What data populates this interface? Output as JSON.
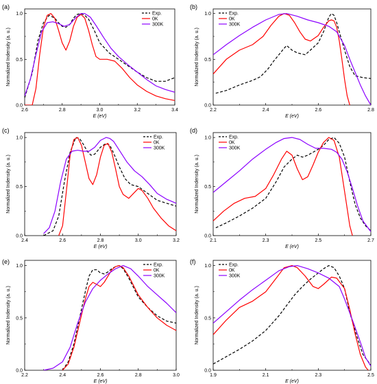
{
  "figure": {
    "series_styles": [
      {
        "key": "exp",
        "color": "#000000",
        "dash": true
      },
      {
        "key": "k0",
        "color": "#ff0000",
        "dash": false
      },
      {
        "key": "k300",
        "color": "#8b00ff",
        "dash": false
      }
    ]
  },
  "chart_data": [
    {
      "panel_label": "(a)",
      "type": "line",
      "xlabel": "E (eV)",
      "ylabel": "Normalized Indensity (a. u.)",
      "xlim": [
        2.6,
        3.4
      ],
      "ylim": [
        0.0,
        1.05
      ],
      "xticks": [
        "2.6",
        "2.8",
        "3.0",
        "3.2",
        "3.4"
      ],
      "yticks": [
        "0.0",
        "0.5",
        "1.0"
      ],
      "legend": [
        "Exp.",
        "0K",
        "300K"
      ],
      "legend_position": "top-right",
      "series": [
        {
          "name": "Exp.",
          "x": [
            2.6,
            2.64,
            2.67,
            2.7,
            2.73,
            2.76,
            2.78,
            2.8,
            2.82,
            2.84,
            2.86,
            2.88,
            2.9,
            2.92,
            2.94,
            2.97,
            3.0,
            3.05,
            3.1,
            3.15,
            3.2,
            3.25,
            3.3,
            3.35,
            3.4
          ],
          "y": [
            0.08,
            0.35,
            0.7,
            0.9,
            0.98,
            0.95,
            0.9,
            0.86,
            0.85,
            0.88,
            0.95,
            0.99,
            1.0,
            0.98,
            0.94,
            0.82,
            0.68,
            0.57,
            0.5,
            0.43,
            0.36,
            0.3,
            0.26,
            0.26,
            0.3
          ]
        },
        {
          "name": "0K",
          "x": [
            2.6,
            2.64,
            2.66,
            2.68,
            2.7,
            2.72,
            2.74,
            2.76,
            2.78,
            2.8,
            2.82,
            2.84,
            2.86,
            2.88,
            2.9,
            2.92,
            2.94,
            2.96,
            2.98,
            3.0,
            3.04,
            3.08,
            3.12,
            3.16,
            3.2,
            3.25,
            3.3,
            3.35,
            3.4
          ],
          "y": [
            0.0,
            0.0,
            0.18,
            0.55,
            0.85,
            0.98,
            1.0,
            0.95,
            0.82,
            0.68,
            0.6,
            0.7,
            0.86,
            0.96,
            0.99,
            0.95,
            0.82,
            0.66,
            0.53,
            0.5,
            0.5,
            0.48,
            0.4,
            0.3,
            0.22,
            0.15,
            0.1,
            0.07,
            0.05
          ]
        },
        {
          "name": "300K",
          "x": [
            2.6,
            2.63,
            2.66,
            2.69,
            2.72,
            2.75,
            2.78,
            2.81,
            2.84,
            2.87,
            2.9,
            2.92,
            2.95,
            2.98,
            3.02,
            3.06,
            3.1,
            3.15,
            3.2,
            3.25,
            3.3,
            3.35,
            3.4
          ],
          "y": [
            0.1,
            0.28,
            0.55,
            0.8,
            0.9,
            0.91,
            0.89,
            0.86,
            0.88,
            0.95,
            1.0,
            1.0,
            0.96,
            0.87,
            0.74,
            0.62,
            0.53,
            0.44,
            0.36,
            0.28,
            0.21,
            0.17,
            0.14
          ]
        }
      ]
    },
    {
      "panel_label": "(b)",
      "type": "line",
      "xlabel": "E (eV)",
      "ylabel": "Normalized Indensity (a. u.)",
      "xlim": [
        2.2,
        2.8
      ],
      "ylim": [
        0.0,
        1.05
      ],
      "xticks": [
        "2.2",
        "2.4",
        "2.6",
        "2.8"
      ],
      "yticks": [
        "0.0",
        "0.5",
        "1.0"
      ],
      "legend": [
        "Exp.",
        "0K",
        "300K"
      ],
      "legend_position": "top-left",
      "series": [
        {
          "name": "Exp.",
          "x": [
            2.21,
            2.25,
            2.3,
            2.35,
            2.38,
            2.41,
            2.43,
            2.45,
            2.47,
            2.48,
            2.5,
            2.52,
            2.55,
            2.57,
            2.6,
            2.62,
            2.64,
            2.65,
            2.66,
            2.67,
            2.7,
            2.72,
            2.74,
            2.77,
            2.8
          ],
          "y": [
            0.13,
            0.16,
            0.22,
            0.27,
            0.31,
            0.4,
            0.48,
            0.55,
            0.62,
            0.65,
            0.6,
            0.57,
            0.55,
            0.6,
            0.68,
            0.8,
            0.96,
            1.0,
            0.98,
            0.9,
            0.6,
            0.42,
            0.32,
            0.3,
            0.29
          ]
        },
        {
          "name": "0K",
          "x": [
            2.2,
            2.25,
            2.3,
            2.35,
            2.39,
            2.42,
            2.45,
            2.47,
            2.49,
            2.51,
            2.53,
            2.55,
            2.57,
            2.6,
            2.62,
            2.64,
            2.65,
            2.66,
            2.67,
            2.68,
            2.69,
            2.7,
            2.71,
            2.72
          ],
          "y": [
            0.34,
            0.5,
            0.6,
            0.66,
            0.75,
            0.87,
            0.97,
            1.0,
            0.98,
            0.9,
            0.8,
            0.72,
            0.7,
            0.76,
            0.85,
            0.92,
            0.93,
            0.92,
            0.85,
            0.7,
            0.5,
            0.28,
            0.1,
            0.0
          ]
        },
        {
          "name": "300K",
          "x": [
            2.2,
            2.25,
            2.3,
            2.35,
            2.4,
            2.45,
            2.48,
            2.52,
            2.56,
            2.6,
            2.64,
            2.67,
            2.7,
            2.72,
            2.74,
            2.76,
            2.78,
            2.8
          ],
          "y": [
            0.55,
            0.66,
            0.76,
            0.85,
            0.93,
            0.99,
            1.0,
            0.97,
            0.93,
            0.9,
            0.86,
            0.8,
            0.65,
            0.5,
            0.36,
            0.22,
            0.1,
            0.0
          ]
        }
      ]
    },
    {
      "panel_label": "(c)",
      "type": "line",
      "xlabel": "E (eV)",
      "ylabel": "Normalized Indensity (a. u.)",
      "xlim": [
        2.4,
        3.2
      ],
      "ylim": [
        0.0,
        1.05
      ],
      "xticks": [
        "2.4",
        "2.6",
        "2.8",
        "3.0",
        "3.2"
      ],
      "yticks": [
        "0.0",
        "0.5",
        "1.0"
      ],
      "legend": [
        "Exp.",
        "0K",
        "300K"
      ],
      "legend_position": "top-right",
      "series": [
        {
          "name": "Exp.",
          "x": [
            2.5,
            2.55,
            2.58,
            2.61,
            2.64,
            2.67,
            2.69,
            2.71,
            2.73,
            2.75,
            2.77,
            2.8,
            2.83,
            2.85,
            2.87,
            2.9,
            2.93,
            2.96,
            3.0,
            3.05,
            3.1,
            3.15,
            3.2
          ],
          "y": [
            0.0,
            0.05,
            0.2,
            0.55,
            0.85,
            1.0,
            0.99,
            0.93,
            0.86,
            0.82,
            0.83,
            0.9,
            0.94,
            0.92,
            0.84,
            0.7,
            0.58,
            0.52,
            0.5,
            0.43,
            0.36,
            0.33,
            0.3
          ]
        },
        {
          "name": "0K",
          "x": [
            2.58,
            2.6,
            2.62,
            2.64,
            2.66,
            2.68,
            2.7,
            2.72,
            2.74,
            2.76,
            2.78,
            2.8,
            2.82,
            2.84,
            2.86,
            2.88,
            2.9,
            2.92,
            2.95,
            2.98,
            3.0,
            3.02,
            3.05,
            3.08,
            3.12,
            3.16,
            3.2
          ],
          "y": [
            0.0,
            0.1,
            0.45,
            0.82,
            0.98,
            1.0,
            0.92,
            0.75,
            0.58,
            0.52,
            0.62,
            0.8,
            0.92,
            0.94,
            0.85,
            0.68,
            0.5,
            0.42,
            0.38,
            0.44,
            0.48,
            0.46,
            0.38,
            0.28,
            0.18,
            0.1,
            0.05
          ]
        },
        {
          "name": "300K",
          "x": [
            2.5,
            2.53,
            2.56,
            2.59,
            2.62,
            2.65,
            2.68,
            2.71,
            2.74,
            2.77,
            2.8,
            2.83,
            2.85,
            2.87,
            2.9,
            2.94,
            2.98,
            3.02,
            3.06,
            3.1,
            3.15,
            3.2
          ],
          "y": [
            0.02,
            0.08,
            0.25,
            0.55,
            0.78,
            0.86,
            0.87,
            0.86,
            0.86,
            0.9,
            0.97,
            1.0,
            0.99,
            0.96,
            0.87,
            0.75,
            0.66,
            0.6,
            0.52,
            0.43,
            0.37,
            0.33
          ]
        }
      ]
    },
    {
      "panel_label": "(d)",
      "type": "line",
      "xlabel": "E (eV)",
      "ylabel": "Normalized Indensity (a. u.)",
      "xlim": [
        2.1,
        2.7
      ],
      "ylim": [
        0.0,
        1.05
      ],
      "xticks": [
        "2.1",
        "2.3",
        "2.5",
        "2.7"
      ],
      "yticks": [
        "0.0",
        "0.5",
        "1.0"
      ],
      "legend": [
        "Exp.",
        "0K",
        "300K"
      ],
      "legend_position": "top-left",
      "series": [
        {
          "name": "Exp.",
          "x": [
            2.11,
            2.15,
            2.2,
            2.25,
            2.3,
            2.34,
            2.37,
            2.4,
            2.42,
            2.44,
            2.46,
            2.48,
            2.5,
            2.52,
            2.54,
            2.56,
            2.58,
            2.6,
            2.62,
            2.64,
            2.66,
            2.68,
            2.7
          ],
          "y": [
            0.08,
            0.13,
            0.2,
            0.28,
            0.38,
            0.55,
            0.7,
            0.78,
            0.82,
            0.8,
            0.82,
            0.85,
            0.88,
            0.92,
            0.98,
            1.0,
            0.94,
            0.8,
            0.55,
            0.32,
            0.18,
            0.1,
            0.05
          ]
        },
        {
          "name": "0K",
          "x": [
            2.1,
            2.14,
            2.18,
            2.22,
            2.26,
            2.3,
            2.33,
            2.36,
            2.38,
            2.4,
            2.42,
            2.44,
            2.46,
            2.48,
            2.5,
            2.52,
            2.54,
            2.56,
            2.58,
            2.6,
            2.62,
            2.63
          ],
          "y": [
            0.15,
            0.25,
            0.33,
            0.38,
            0.4,
            0.48,
            0.62,
            0.78,
            0.86,
            0.82,
            0.68,
            0.57,
            0.6,
            0.72,
            0.85,
            0.95,
            1.0,
            0.97,
            0.8,
            0.45,
            0.1,
            0.0
          ]
        },
        {
          "name": "300K",
          "x": [
            2.1,
            2.15,
            2.2,
            2.25,
            2.3,
            2.34,
            2.37,
            2.4,
            2.43,
            2.46,
            2.49,
            2.52,
            2.55,
            2.57,
            2.59,
            2.61,
            2.63,
            2.65,
            2.67,
            2.7
          ],
          "y": [
            0.44,
            0.55,
            0.66,
            0.78,
            0.88,
            0.95,
            0.99,
            1.0,
            0.98,
            0.93,
            0.89,
            0.89,
            0.88,
            0.85,
            0.78,
            0.65,
            0.48,
            0.3,
            0.15,
            0.04
          ]
        }
      ]
    },
    {
      "panel_label": "(e)",
      "type": "line",
      "xlabel": "E (eV)",
      "ylabel": "Normalized Indensity (a. u.)",
      "xlim": [
        2.2,
        3.0
      ],
      "ylim": [
        0.0,
        1.05
      ],
      "xticks": [
        "2.2",
        "2.4",
        "2.6",
        "2.8",
        "3.0"
      ],
      "yticks": [
        "0.0",
        "0.5",
        "1.0"
      ],
      "legend": [
        "Exp.",
        "0K",
        "300K"
      ],
      "legend_position": "top-right",
      "series": [
        {
          "name": "Exp.",
          "x": [
            2.4,
            2.43,
            2.46,
            2.49,
            2.52,
            2.54,
            2.56,
            2.58,
            2.6,
            2.62,
            2.64,
            2.66,
            2.68,
            2.7,
            2.72,
            2.75,
            2.8,
            2.85,
            2.9,
            2.95,
            3.0
          ],
          "y": [
            0.0,
            0.08,
            0.25,
            0.5,
            0.75,
            0.9,
            0.96,
            0.96,
            0.93,
            0.92,
            0.94,
            0.97,
            0.99,
            1.0,
            0.97,
            0.88,
            0.7,
            0.6,
            0.52,
            0.47,
            0.45
          ]
        },
        {
          "name": "0K",
          "x": [
            2.4,
            2.43,
            2.46,
            2.49,
            2.52,
            2.54,
            2.56,
            2.58,
            2.6,
            2.62,
            2.64,
            2.66,
            2.68,
            2.7,
            2.72,
            2.75,
            2.8,
            2.85,
            2.9,
            2.95,
            3.0
          ],
          "y": [
            0.0,
            0.06,
            0.22,
            0.45,
            0.68,
            0.8,
            0.84,
            0.82,
            0.8,
            0.84,
            0.9,
            0.96,
            0.99,
            1.0,
            0.98,
            0.9,
            0.72,
            0.6,
            0.5,
            0.43,
            0.38
          ]
        },
        {
          "name": "300K",
          "x": [
            2.3,
            2.35,
            2.4,
            2.44,
            2.48,
            2.52,
            2.56,
            2.6,
            2.64,
            2.68,
            2.72,
            2.76,
            2.8,
            2.85,
            2.9,
            2.95,
            3.0
          ],
          "y": [
            0.0,
            0.02,
            0.08,
            0.22,
            0.45,
            0.65,
            0.78,
            0.86,
            0.92,
            0.97,
            1.0,
            0.97,
            0.9,
            0.8,
            0.72,
            0.64,
            0.55
          ]
        }
      ]
    },
    {
      "panel_label": "(f)",
      "type": "line",
      "xlabel": "E (eV)",
      "ylabel": "Normalized Indensity (a. u.)",
      "xlim": [
        1.9,
        2.5
      ],
      "ylim": [
        0.0,
        1.05
      ],
      "xticks": [
        "1.9",
        "2.1",
        "2.3",
        "2.5"
      ],
      "yticks": [
        "0.0",
        "0.5",
        "1.0"
      ],
      "legend": [
        "Exp.",
        "0K",
        "300K"
      ],
      "legend_position": "top-left",
      "series": [
        {
          "name": "Exp.",
          "x": [
            1.9,
            1.95,
            2.0,
            2.05,
            2.1,
            2.15,
            2.18,
            2.21,
            2.24,
            2.27,
            2.3,
            2.32,
            2.34,
            2.36,
            2.38,
            2.4,
            2.42,
            2.45,
            2.47,
            2.5
          ],
          "y": [
            0.06,
            0.13,
            0.2,
            0.28,
            0.38,
            0.52,
            0.62,
            0.72,
            0.8,
            0.87,
            0.93,
            0.97,
            1.0,
            0.98,
            0.9,
            0.78,
            0.55,
            0.3,
            0.15,
            0.05
          ]
        },
        {
          "name": "0K",
          "x": [
            1.9,
            1.95,
            2.0,
            2.05,
            2.1,
            2.14,
            2.17,
            2.2,
            2.22,
            2.25,
            2.28,
            2.3,
            2.32,
            2.35,
            2.37,
            2.4,
            2.42,
            2.44,
            2.46,
            2.48,
            2.49
          ],
          "y": [
            0.34,
            0.48,
            0.6,
            0.66,
            0.75,
            0.88,
            0.98,
            1.0,
            0.98,
            0.9,
            0.8,
            0.78,
            0.82,
            0.89,
            0.88,
            0.78,
            0.58,
            0.35,
            0.15,
            0.03,
            0.0
          ]
        },
        {
          "name": "300K",
          "x": [
            1.9,
            1.95,
            2.0,
            2.05,
            2.1,
            2.15,
            2.19,
            2.22,
            2.26,
            2.3,
            2.34,
            2.38,
            2.4,
            2.43,
            2.46,
            2.48,
            2.5
          ],
          "y": [
            0.45,
            0.56,
            0.67,
            0.77,
            0.86,
            0.95,
            0.99,
            1.0,
            0.97,
            0.93,
            0.88,
            0.8,
            0.68,
            0.48,
            0.27,
            0.12,
            0.04
          ]
        }
      ]
    }
  ]
}
